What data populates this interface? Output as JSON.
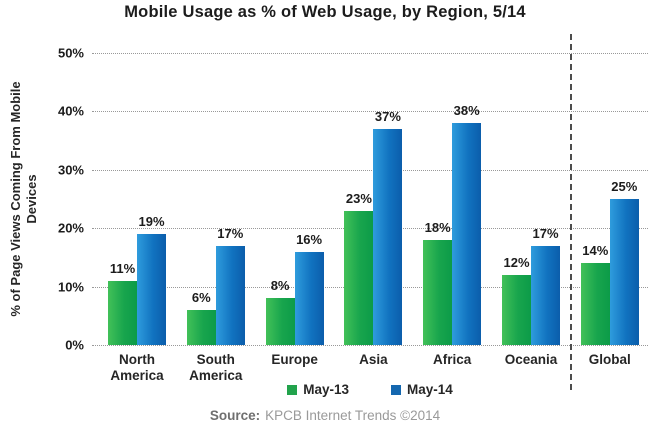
{
  "title": "Mobile Usage as % of Web Usage, by Region, 5/14",
  "chart_data": {
    "type": "bar",
    "categories": [
      "North America",
      "South America",
      "Europe",
      "Asia",
      "Africa",
      "Oceania",
      "Global"
    ],
    "series": [
      {
        "name": "May-13",
        "values": [
          11,
          6,
          8,
          23,
          18,
          12,
          14
        ]
      },
      {
        "name": "May-14",
        "values": [
          19,
          17,
          16,
          37,
          38,
          17,
          25
        ]
      }
    ],
    "value_label_format": "{v}%",
    "title": "Mobile Usage as % of Web Usage, by Region, 5/14",
    "xlabel": "",
    "ylabel": "% of Page Views Coming From Mobile Devices",
    "ylabel_lines": [
      "% of Page Views Coming From Mobile",
      "Devices"
    ],
    "ylim": [
      0,
      50
    ],
    "yticks": [
      "0%",
      "10%",
      "20%",
      "30%",
      "40%",
      "50%"
    ],
    "ytick_step": 10,
    "grid": "horizontal dotted",
    "legend_position": "bottom center",
    "separator_before_category": "Global"
  },
  "legend": {
    "items": [
      {
        "label": "May-13",
        "color": "#22a34c"
      },
      {
        "label": "May-14",
        "color": "#1467af"
      }
    ]
  },
  "source": {
    "prefix": "Source:",
    "text": "KPCB Internet Trends ©2014"
  },
  "colors": {
    "may13_bar_gradient": [
      "#42c158",
      "#18a54d",
      "#0c9b48"
    ],
    "may14_bar_gradient": [
      "#2f9cdd",
      "#1173c0",
      "#0b5dab"
    ],
    "gridline": "#999999",
    "separator": "#4d4d4d",
    "text": "#1c1c1c",
    "source_text": "#9a9a9a"
  }
}
